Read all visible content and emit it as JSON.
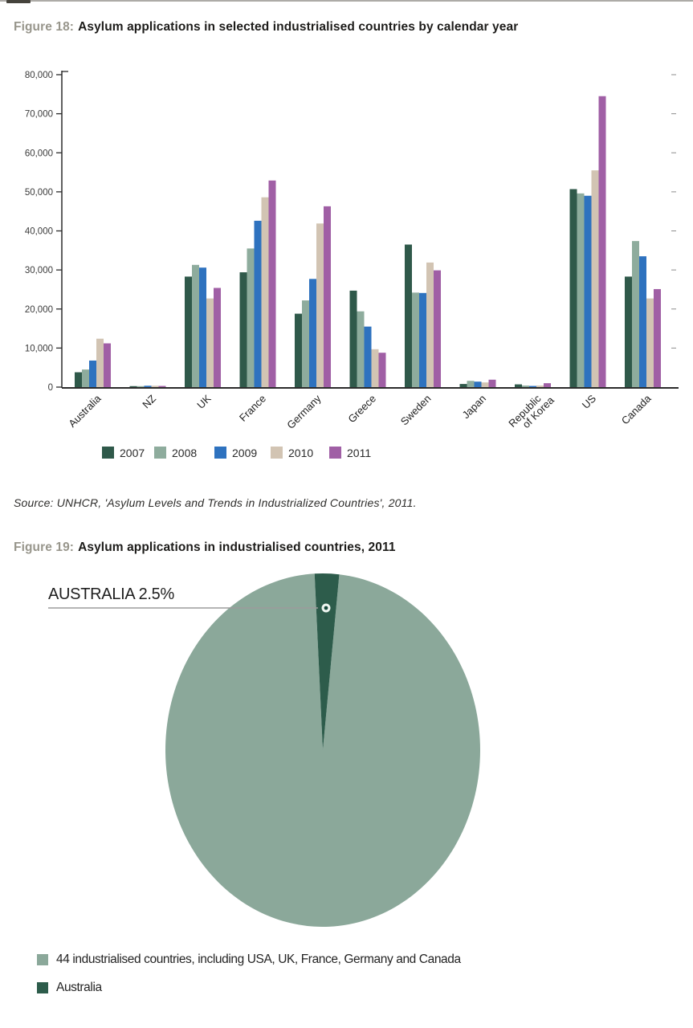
{
  "figure18": {
    "label": "Figure 18:",
    "title": "Asylum applications in selected industrialised countries by calendar year"
  },
  "source_note": "Source: UNHCR, 'Asylum Levels and Trends in Industrialized Countries', 2011.",
  "figure19": {
    "label": "Figure 19:",
    "title": "Asylum applications in industrialised countries, 2011"
  },
  "chart_data": [
    {
      "type": "bar",
      "title": "Figure 18: Asylum applications in selected industrialised countries by calendar year",
      "categories": [
        "Australia",
        "NZ",
        "UK",
        "France",
        "Germany",
        "Greece",
        "Sweden",
        "Japan",
        "Republic of Korea",
        "US",
        "Canada"
      ],
      "series": [
        {
          "name": "2007",
          "color": "#2F594A",
          "values": [
            3800,
            250,
            28300,
            29400,
            18800,
            24700,
            36500,
            800,
            700,
            50700,
            28300
          ]
        },
        {
          "name": "2008",
          "color": "#8EAC9D",
          "values": [
            4500,
            250,
            31300,
            35500,
            22200,
            19400,
            24200,
            1600,
            400,
            49600,
            37400
          ]
        },
        {
          "name": "2009",
          "color": "#2E72BF",
          "values": [
            6800,
            350,
            30600,
            42600,
            27700,
            15500,
            24100,
            1400,
            300,
            49000,
            33500
          ]
        },
        {
          "name": "2010",
          "color": "#D2C4B3",
          "values": [
            12400,
            350,
            22700,
            48600,
            41900,
            9700,
            31900,
            1200,
            400,
            55500,
            22700
          ]
        },
        {
          "name": "2011",
          "color": "#A05FA5",
          "values": [
            11200,
            300,
            25400,
            52900,
            46300,
            8800,
            29900,
            1900,
            1000,
            74500,
            25100
          ]
        }
      ],
      "xlabel": "",
      "ylabel": "",
      "ylim": [
        0,
        80000
      ],
      "ytick_step": 10000,
      "ytick_labels": [
        "0",
        "10,000",
        "20,000",
        "30,000",
        "40,000",
        "50,000",
        "60,000",
        "70,000",
        "80,000"
      ],
      "grid": false,
      "legend_position": "bottom",
      "legend_entries": [
        "2007",
        "2008",
        "2009",
        "2010",
        "2011"
      ]
    },
    {
      "type": "pie",
      "title": "Figure 19: Asylum applications in industrialised countries, 2011",
      "slices": [
        {
          "label": "44 industrialised countries, including USA, UK, France, Germany and Canada",
          "value_pct": 97.5,
          "color": "#8BA89A"
        },
        {
          "label": "Australia",
          "value_pct": 2.5,
          "color": "#2D5C4B"
        }
      ],
      "annotation": "AUSTRALIA 2.5%",
      "legend_position": "bottom"
    }
  ]
}
